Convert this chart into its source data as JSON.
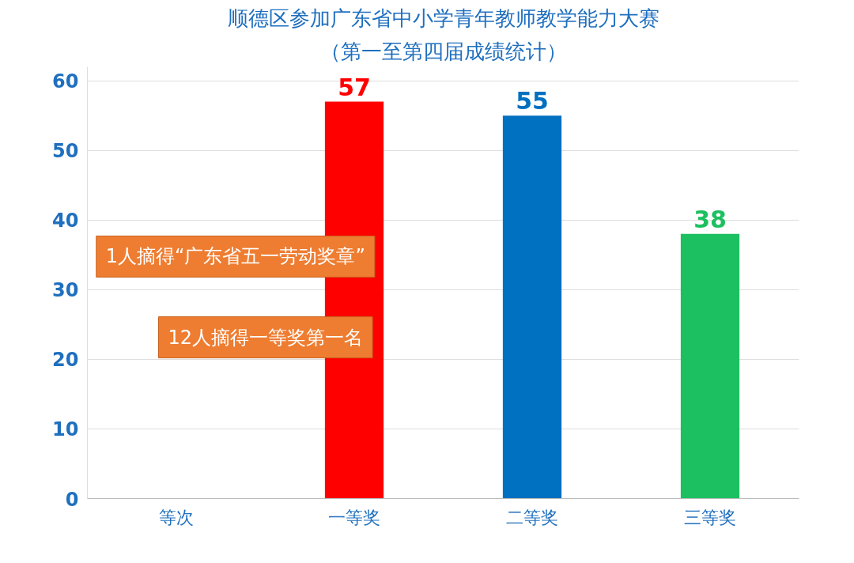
{
  "chart_data": {
    "type": "bar",
    "title": "顺德区参加广东省中小学青年教师教学能力大赛",
    "subtitle": "（第一至第四届成绩统计）",
    "categories": [
      "等次",
      "一等奖",
      "二等奖",
      "三等奖"
    ],
    "values": [
      null,
      57,
      55,
      38
    ],
    "colors": [
      "#ff0000",
      "#ff0000",
      "#0070c0",
      "#1cc060"
    ],
    "ylim": [
      0,
      62
    ],
    "yticks": [
      0,
      10,
      20,
      30,
      40,
      50,
      60
    ],
    "grid": "y",
    "data_labels": true,
    "annotations": [
      "1人摘得“广东省五一劳动奖章”",
      "12人摘得一等奖第一名"
    ]
  }
}
